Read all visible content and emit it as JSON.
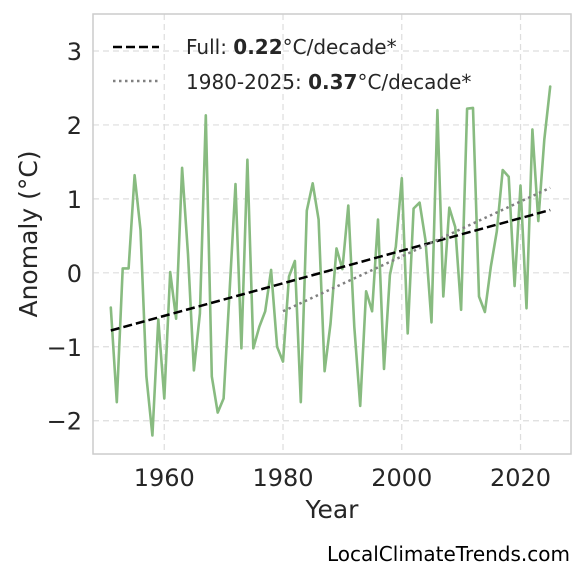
{
  "chart_data": {
    "type": "line",
    "xlabel": "Year",
    "ylabel": "Anomaly (°C)",
    "xlim": [
      1948,
      2028.5
    ],
    "ylim": [
      -2.45,
      3.5
    ],
    "xticks": [
      1960,
      1980,
      2000,
      2020
    ],
    "yticks": [
      3,
      2,
      1,
      0,
      -1,
      -2
    ],
    "ytick_labels": [
      "3",
      "2",
      "1",
      "0",
      "−1",
      "−2"
    ],
    "grid": true,
    "legend_position": "top-left",
    "series": [
      {
        "style": "solid",
        "color": "#88bb80",
        "x": [
          1951,
          1952,
          1953,
          1954,
          1955,
          1956,
          1957,
          1958,
          1959,
          1960,
          1961,
          1962,
          1963,
          1964,
          1965,
          1966,
          1967,
          1968,
          1969,
          1970,
          1971,
          1972,
          1973,
          1974,
          1975,
          1976,
          1977,
          1978,
          1979,
          1980,
          1981,
          1982,
          1983,
          1984,
          1985,
          1986,
          1987,
          1988,
          1989,
          1990,
          1991,
          1992,
          1993,
          1994,
          1995,
          1996,
          1997,
          1998,
          1999,
          2000,
          2001,
          2002,
          2003,
          2004,
          2005,
          2006,
          2007,
          2008,
          2009,
          2010,
          2011,
          2012,
          2013,
          2014,
          2015,
          2016,
          2017,
          2018,
          2019,
          2020,
          2021,
          2022,
          2023,
          2024,
          2025
        ],
        "y": [
          -0.47,
          -1.75,
          0.06,
          0.06,
          1.32,
          0.58,
          -1.4,
          -2.2,
          -0.63,
          -1.7,
          0.01,
          -0.62,
          1.42,
          0.25,
          -1.32,
          -0.55,
          2.13,
          -1.4,
          -1.89,
          -1.7,
          -0.25,
          1.2,
          -1.02,
          1.53,
          -1.02,
          -0.73,
          -0.52,
          0.04,
          -1.0,
          -1.2,
          -0.05,
          0.16,
          -1.75,
          0.84,
          1.21,
          0.72,
          -1.33,
          -0.69,
          0.33,
          0.05,
          0.91,
          -0.73,
          -1.8,
          -0.25,
          -0.52,
          0.72,
          -1.3,
          -0.03,
          0.35,
          1.28,
          -0.82,
          0.87,
          0.95,
          0.44,
          -0.67,
          2.2,
          -0.32,
          0.88,
          0.62,
          -0.5,
          2.22,
          2.23,
          -0.32,
          -0.53,
          0.08,
          0.56,
          1.39,
          1.3,
          -0.18,
          1.18,
          -0.48,
          1.94,
          0.7,
          1.8,
          2.52
        ]
      },
      {
        "name": "Full",
        "style": "dashed",
        "color": "#000000",
        "x": [
          1951,
          2025
        ],
        "y": [
          -0.78,
          0.85
        ]
      },
      {
        "name": "1980-2025",
        "style": "dotted",
        "color": "#808080",
        "x": [
          1980,
          2025
        ],
        "y": [
          -0.52,
          1.15
        ]
      }
    ],
    "legend": [
      {
        "label_prefix": "Full: ",
        "value": "0.22",
        "label_suffix": "°C/decade*",
        "style": "dashed",
        "color": "#000000"
      },
      {
        "label_prefix": "1980-2025: ",
        "value": "0.37",
        "label_suffix": "°C/decade*",
        "style": "dotted",
        "color": "#808080"
      }
    ]
  },
  "footer": {
    "credit": "LocalClimateTrends.com"
  }
}
